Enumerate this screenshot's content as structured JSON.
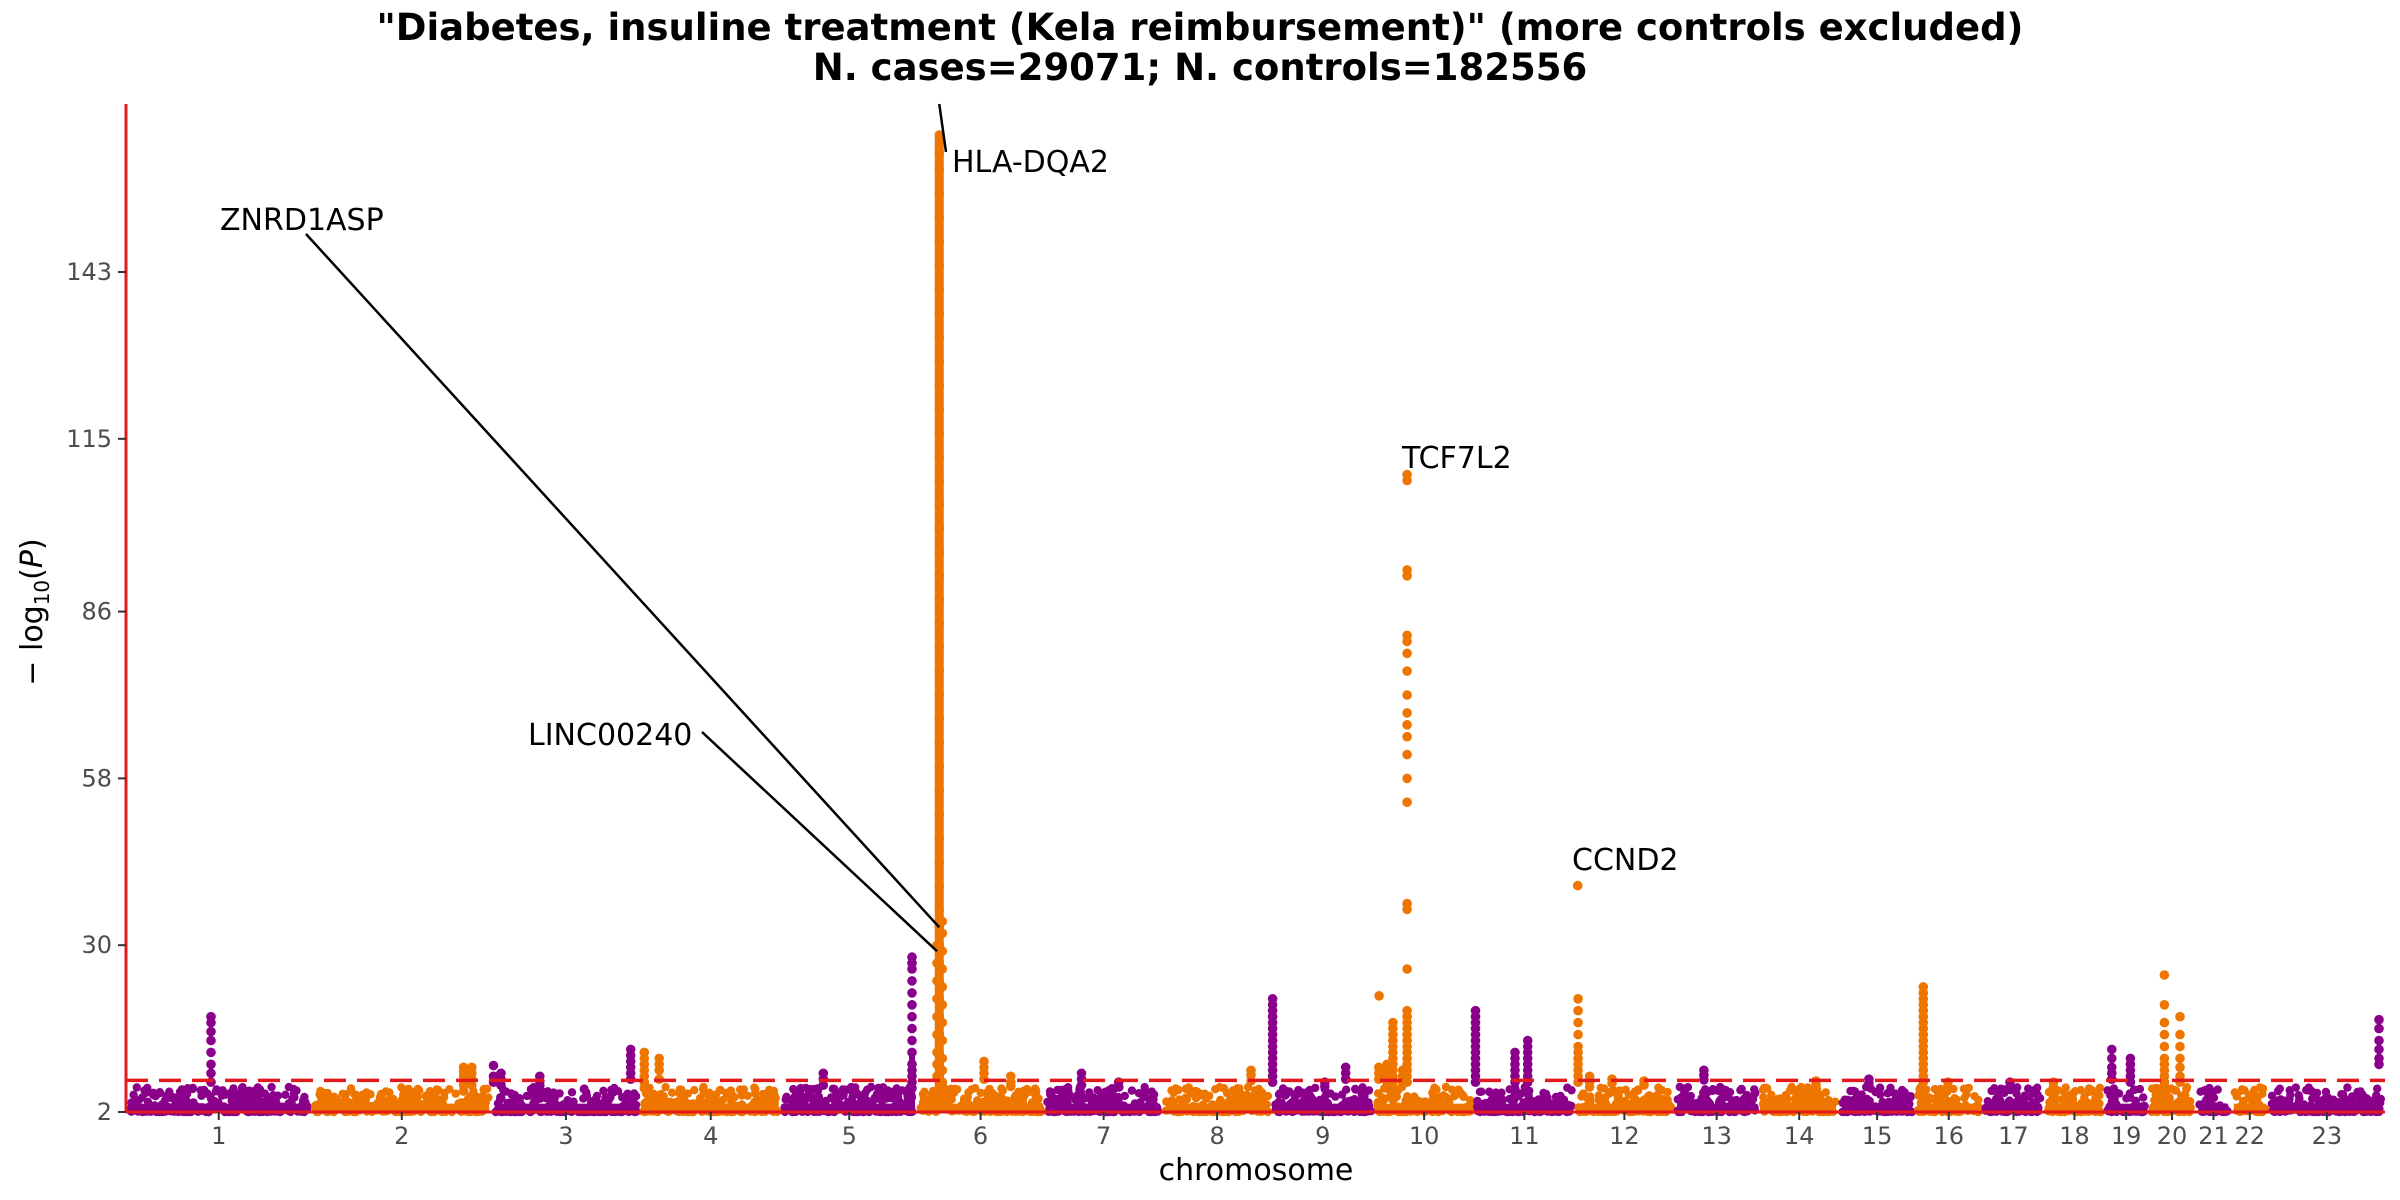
{
  "chart_data": {
    "type": "scatter",
    "subtype": "manhattan",
    "title": "\"Diabetes, insuline treatment (Kela reimbursement)\" (more controls excluded)",
    "subtitle": "N. cases=29071; N. controls=182556",
    "xlabel": "chromosome",
    "ylabel": "-log10(P)",
    "ylim": [
      2,
      170
    ],
    "yticks": [
      2,
      30,
      58,
      86,
      115,
      143
    ],
    "significance_line": 7.3,
    "colors": {
      "odd": "#8B008B",
      "even": "#EE7600",
      "axis": "#E31A1C",
      "threshold": "#E31A1C"
    },
    "chromosomes": [
      {
        "label": "1",
        "start": 0.0,
        "end": 248.96,
        "color": "#8B008B"
      },
      {
        "label": "2",
        "start": 248.96,
        "end": 491.15,
        "color": "#EE7600"
      },
      {
        "label": "3",
        "start": 491.15,
        "end": 689.45,
        "color": "#8B008B"
      },
      {
        "label": "4",
        "start": 689.45,
        "end": 879.66,
        "color": "#EE7600"
      },
      {
        "label": "5",
        "start": 879.66,
        "end": 1061.2,
        "color": "#8B008B"
      },
      {
        "label": "6",
        "start": 1061.2,
        "end": 1232.0,
        "color": "#EE7600"
      },
      {
        "label": "7",
        "start": 1232.0,
        "end": 1391.4,
        "color": "#8B008B"
      },
      {
        "label": "8",
        "start": 1391.4,
        "end": 1536.5,
        "color": "#EE7600"
      },
      {
        "label": "9",
        "start": 1536.5,
        "end": 1674.9,
        "color": "#8B008B"
      },
      {
        "label": "10",
        "start": 1674.9,
        "end": 1808.7,
        "color": "#EE7600"
      },
      {
        "label": "11",
        "start": 1808.7,
        "end": 1943.8,
        "color": "#8B008B"
      },
      {
        "label": "12",
        "start": 1943.8,
        "end": 2077.1,
        "color": "#EE7600"
      },
      {
        "label": "13",
        "start": 2077.1,
        "end": 2191.5,
        "color": "#8B008B"
      },
      {
        "label": "14",
        "start": 2191.5,
        "end": 2298.5,
        "color": "#EE7600"
      },
      {
        "label": "15",
        "start": 2298.5,
        "end": 2400.5,
        "color": "#8B008B"
      },
      {
        "label": "16",
        "start": 2400.5,
        "end": 2490.8,
        "color": "#EE7600"
      },
      {
        "label": "17",
        "start": 2490.8,
        "end": 2574.1,
        "color": "#8B008B"
      },
      {
        "label": "18",
        "start": 2574.1,
        "end": 2654.4,
        "color": "#EE7600"
      },
      {
        "label": "19",
        "start": 2654.4,
        "end": 2713.0,
        "color": "#8B008B"
      },
      {
        "label": "20",
        "start": 2713.0,
        "end": 2777.5,
        "color": "#EE7600"
      },
      {
        "label": "21",
        "start": 2777.5,
        "end": 2824.2,
        "color": "#8B008B"
      },
      {
        "label": "22",
        "start": 2824.2,
        "end": 2875.0,
        "color": "#EE7600"
      },
      {
        "label": "23",
        "start": 2875.0,
        "end": 3031.0,
        "color": "#8B008B"
      }
    ],
    "peaks": [
      {
        "chrom": "1",
        "pos": 114,
        "values": [
          17,
          18,
          15.5,
          14,
          12,
          10,
          8.5,
          7
        ]
      },
      {
        "chrom": "2",
        "pos": 204,
        "values": [
          9.5,
          8.8,
          8,
          7.2,
          6.5,
          5.5
        ]
      },
      {
        "chrom": "2",
        "pos": 215,
        "values": [
          9.5,
          8.5,
          7.5,
          6.5
        ]
      },
      {
        "chrom": "3",
        "pos": 12,
        "values": [
          8.5,
          7.5,
          6.5
        ]
      },
      {
        "chrom": "3",
        "pos": 2,
        "values": [
          9.8,
          8,
          7
        ]
      },
      {
        "chrom": "3",
        "pos": 64,
        "values": [
          8,
          7.2,
          6.5
        ]
      },
      {
        "chrom": "3",
        "pos": 186,
        "values": [
          12.5,
          11.5,
          10.5,
          9.5,
          8.5,
          7.5
        ]
      },
      {
        "chrom": "4",
        "pos": 6,
        "values": [
          12,
          11,
          10,
          9,
          8,
          7,
          6
        ]
      },
      {
        "chrom": "4",
        "pos": 26,
        "values": [
          11,
          10,
          9,
          7.5
        ]
      },
      {
        "chrom": "5",
        "pos": 56,
        "values": [
          8.5,
          7.5,
          6.5
        ]
      },
      {
        "chrom": "5",
        "pos": 175,
        "values": [
          28,
          27,
          26,
          24,
          22,
          20,
          18,
          16,
          14,
          12,
          10,
          9,
          8,
          7,
          6
        ]
      },
      {
        "chrom": "6",
        "pos": 30,
        "values": [
          166,
          163,
          160,
          156,
          152,
          148,
          144,
          140,
          136,
          132,
          128,
          124,
          120,
          116,
          112,
          108,
          104,
          100,
          96,
          92,
          88,
          84,
          80,
          76,
          72,
          68,
          64,
          60,
          56,
          52,
          48,
          44,
          40,
          36,
          33,
          30,
          27,
          24,
          21,
          18,
          15,
          12,
          10,
          8,
          6
        ]
      },
      {
        "chrom": "6",
        "pos": 27,
        "values": [
          30,
          27,
          24,
          21,
          18,
          15,
          12,
          10,
          8
        ]
      },
      {
        "chrom": "6",
        "pos": 34,
        "values": [
          34,
          32,
          29,
          26,
          23,
          20,
          17,
          14,
          11,
          9,
          7
        ]
      },
      {
        "chrom": "6",
        "pos": 90,
        "values": [
          10.5,
          9.5,
          8.5,
          7.5
        ]
      },
      {
        "chrom": "6",
        "pos": 126,
        "values": [
          8,
          7,
          6.3
        ]
      },
      {
        "chrom": "7",
        "pos": 50,
        "values": [
          8.5,
          7.5,
          6.5
        ]
      },
      {
        "chrom": "7",
        "pos": 100,
        "values": [
          7,
          6.2
        ]
      },
      {
        "chrom": "8",
        "pos": 118,
        "values": [
          9,
          8.2,
          7.2
        ]
      },
      {
        "chrom": "9",
        "pos": 2,
        "values": [
          21,
          20,
          19,
          18,
          17,
          16,
          15,
          14,
          13,
          12,
          11,
          10,
          9,
          8,
          7
        ]
      },
      {
        "chrom": "9",
        "pos": 72,
        "values": [
          7,
          6.3
        ]
      },
      {
        "chrom": "9",
        "pos": 100,
        "values": [
          9.5,
          8.5,
          7.5
        ]
      },
      {
        "chrom": "10",
        "pos": 6,
        "values": [
          9.5,
          8.5,
          7.5
        ]
      },
      {
        "chrom": "10",
        "pos": 6.5,
        "values": [
          21.5
        ]
      },
      {
        "chrom": "10",
        "pos": 17,
        "values": [
          10,
          9,
          8,
          7,
          6
        ]
      },
      {
        "chrom": "10",
        "pos": 25,
        "values": [
          17,
          16,
          15,
          14,
          13,
          12,
          11,
          10,
          9,
          8,
          7
        ]
      },
      {
        "chrom": "10",
        "pos": 38,
        "values": [
          9,
          8,
          7
        ]
      },
      {
        "chrom": "10",
        "pos": 44,
        "values": [
          109,
          108,
          93,
          92,
          82,
          81,
          79,
          76,
          72,
          69,
          67,
          65,
          62,
          58,
          54,
          37,
          36,
          26,
          19,
          18,
          17,
          16,
          15,
          14,
          13,
          12,
          11,
          10,
          9,
          8,
          7
        ]
      },
      {
        "chrom": "11",
        "pos": 2,
        "values": [
          19,
          18,
          17,
          16,
          15,
          14,
          13,
          12,
          11,
          10,
          9,
          8,
          7
        ]
      },
      {
        "chrom": "11",
        "pos": 55,
        "values": [
          12,
          11,
          10,
          9,
          8,
          7
        ]
      },
      {
        "chrom": "11",
        "pos": 72,
        "values": [
          14,
          13,
          12,
          11,
          10,
          9,
          8,
          7
        ]
      },
      {
        "chrom": "12",
        "pos": 4,
        "values": [
          40
        ]
      },
      {
        "chrom": "12",
        "pos": 4.5,
        "values": [
          21,
          19,
          17,
          15,
          13,
          12,
          11,
          10,
          9,
          8,
          7
        ]
      },
      {
        "chrom": "12",
        "pos": 20,
        "values": [
          8,
          7,
          6.2
        ]
      },
      {
        "chrom": "12",
        "pos": 50,
        "values": [
          7.5,
          6.8
        ]
      },
      {
        "chrom": "12",
        "pos": 93,
        "values": [
          7.2,
          6.5
        ]
      },
      {
        "chrom": "13",
        "pos": 40,
        "values": [
          9,
          8.2,
          7.4
        ]
      },
      {
        "chrom": "14",
        "pos": 76,
        "values": [
          7.2,
          6.5
        ]
      },
      {
        "chrom": "15",
        "pos": 40,
        "values": [
          7.5,
          6.8
        ]
      },
      {
        "chrom": "16",
        "pos": 11,
        "values": [
          23,
          22,
          21,
          20,
          19,
          18,
          17,
          16,
          15,
          14,
          13,
          12,
          11,
          10,
          9,
          8,
          7
        ]
      },
      {
        "chrom": "16",
        "pos": 44,
        "values": [
          7,
          6.2
        ]
      },
      {
        "chrom": "17",
        "pos": 37,
        "values": [
          7,
          6.2
        ]
      },
      {
        "chrom": "18",
        "pos": 12,
        "values": [
          7,
          6.2
        ]
      },
      {
        "chrom": "19",
        "pos": 10,
        "values": [
          12.5,
          11,
          9.5,
          8.5,
          7.5
        ]
      },
      {
        "chrom": "19",
        "pos": 35,
        "values": [
          11,
          10,
          9,
          8,
          7
        ]
      },
      {
        "chrom": "20",
        "pos": 22,
        "values": [
          25,
          20,
          17,
          15,
          13,
          11,
          10,
          9,
          8,
          7
        ]
      },
      {
        "chrom": "20",
        "pos": 43,
        "values": [
          18,
          15,
          13,
          11,
          9.5,
          8,
          7
        ]
      },
      {
        "chrom": "23",
        "pos": 148,
        "values": [
          17.5,
          16,
          14,
          12.5,
          11,
          10
        ]
      }
    ],
    "annotations": [
      {
        "text": "HLA-DQA2",
        "point_chrom": "6",
        "point_pos": 30,
        "point_y": 167
      },
      {
        "text": "ZNRD1ASP",
        "point_chrom": "6",
        "point_pos": 30,
        "point_y": 33
      },
      {
        "text": "LINC00240",
        "point_chrom": "6",
        "point_pos": 27,
        "point_y": 29
      },
      {
        "text": "TCF7L2",
        "point_chrom": "10",
        "point_pos": 44,
        "point_y": 109
      },
      {
        "text": "CCND2",
        "point_chrom": "12",
        "point_pos": 4,
        "point_y": 40
      }
    ]
  }
}
